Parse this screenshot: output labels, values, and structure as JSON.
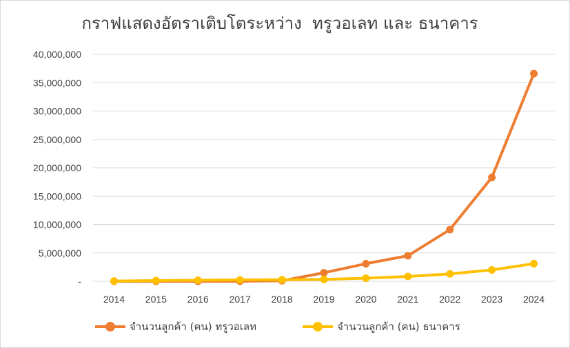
{
  "chart_data": {
    "type": "line",
    "title": "กราฟแสดงอัตราเติบโตระหว่าง  ทรูวอเลท และ ธนาคาร",
    "xlabel": "",
    "ylabel": "",
    "categories": [
      "2014",
      "2015",
      "2016",
      "2017",
      "2018",
      "2019",
      "2020",
      "2021",
      "2022",
      "2023",
      "2024"
    ],
    "ylim": [
      0,
      40000000
    ],
    "yticks": [
      0,
      5000000,
      10000000,
      15000000,
      20000000,
      25000000,
      30000000,
      35000000,
      40000000
    ],
    "ytick_labels": [
      "-",
      "5,000,000",
      "10,000,000",
      "15,000,000",
      "20,000,000",
      "25,000,000",
      "30,000,000",
      "35,000,000",
      "40,000,000"
    ],
    "grid": true,
    "legend": "bottom",
    "series": [
      {
        "name": "จำนวนลูกค้า (คน) ทรูวอเลท",
        "color": "#ED7D31",
        "values": [
          0,
          0,
          0,
          0,
          100000,
          1500000,
          3100000,
          4500000,
          9100000,
          18300000,
          36600000
        ]
      },
      {
        "name": "จำนวนลูกค้า (คน) ธนาคาร",
        "color": "#FFC000",
        "values": [
          50000,
          120000,
          180000,
          250000,
          280000,
          330000,
          550000,
          850000,
          1300000,
          2000000,
          3100000
        ]
      }
    ]
  }
}
